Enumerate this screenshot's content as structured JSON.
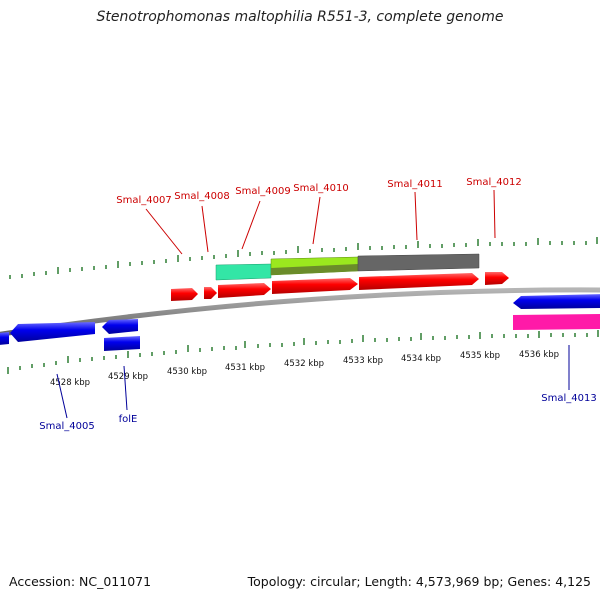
{
  "title": "Stenotrophomonas maltophilia R551-3, complete genome",
  "footer": {
    "accession": "Accession: NC_011071",
    "summary": "Topology: circular; Length: 4,573,969 bp; Genes: 4,125"
  },
  "colors": {
    "forward_gene": "#ff0000",
    "reverse_gene": "#0000ee",
    "forward_label": "#cc0000",
    "reverse_label": "#000099",
    "tick": "#2e7d32",
    "backbone": "#8c8c8c",
    "feature_teal": "#33e6a6",
    "feature_lime": "#9be81e",
    "feature_gray": "#666666",
    "feature_magenta": "#ff1aa8"
  },
  "scale_labels": [
    "4528 kbp",
    "4529 kbp",
    "4530 kbp",
    "4531 kbp",
    "4532 kbp",
    "4533 kbp",
    "4534 kbp",
    "4535 kbp",
    "4536 kbp"
  ],
  "forward_gene_labels": [
    "Smal_4007",
    "Smal_4008",
    "Smal_4009",
    "Smal_4010",
    "Smal_4011",
    "Smal_4012"
  ],
  "reverse_gene_labels": [
    "Smal_4005",
    "folE",
    "Smal_4013"
  ]
}
